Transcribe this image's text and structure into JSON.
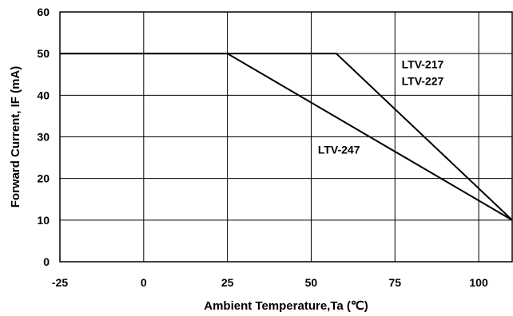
{
  "chart_data": {
    "type": "line",
    "title": "",
    "xlabel": "Ambient Temperature,Ta (℃)",
    "ylabel": "Forward Current, IF (mA)",
    "xlim": [
      -25,
      110
    ],
    "ylim": [
      0,
      60
    ],
    "xticks": [
      -25,
      0,
      25,
      50,
      75,
      100
    ],
    "yticks": [
      0,
      10,
      20,
      30,
      40,
      50,
      60
    ],
    "grid": true,
    "legend": "none",
    "series": [
      {
        "label_lines": [
          "LTV-217",
          "LTV-227"
        ],
        "x": [
          -25,
          57.5,
          110
        ],
        "y": [
          50,
          50,
          10
        ]
      },
      {
        "label_lines": [
          "LTV-247"
        ],
        "x": [
          -25,
          25,
          110
        ],
        "y": [
          50,
          50,
          10
        ]
      }
    ],
    "annotations": [
      {
        "lines": [
          "LTV-217",
          "LTV-227"
        ],
        "x": 77,
        "y": 46.5
      },
      {
        "lines": [
          "LTV-247"
        ],
        "x": 52,
        "y": 26
      }
    ]
  }
}
